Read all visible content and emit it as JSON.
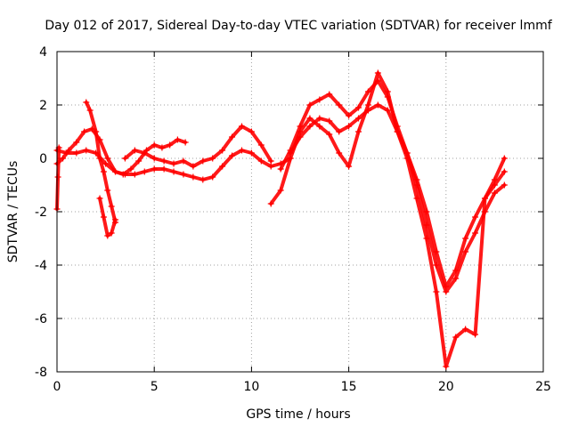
{
  "chart_data": {
    "type": "scatter",
    "title": "Day 012 of 2017, Sidereal Day-to-day VTEC variation (SDTVAR) for receiver lmmf",
    "xlabel": "GPS time / hours",
    "ylabel": "SDTVAR / TECUs",
    "xlim": [
      0,
      25
    ],
    "ylim": [
      -8,
      4
    ],
    "xticks": [
      0,
      5,
      10,
      15,
      20,
      25
    ],
    "yticks": [
      -8,
      -6,
      -4,
      -2,
      0,
      2,
      4
    ],
    "grid": true,
    "marker": "+",
    "color": "#ff0000",
    "series": [
      {
        "x": [
          0.0,
          0.3,
          0.6,
          1.0,
          1.4,
          1.8,
          2.2,
          2.6,
          3.0,
          3.4,
          3.8,
          4.2,
          4.6,
          5.0,
          5.4,
          5.8,
          6.2,
          6.6
        ],
        "y": [
          -0.2,
          0.0,
          0.3,
          0.6,
          1.0,
          1.1,
          0.7,
          0.0,
          -0.5,
          -0.6,
          -0.4,
          -0.1,
          0.3,
          0.5,
          0.4,
          0.5,
          0.7,
          0.6
        ]
      },
      {
        "x": [
          1.5,
          1.7,
          2.0,
          2.2,
          2.4,
          2.6,
          2.8,
          3.0
        ],
        "y": [
          2.1,
          1.8,
          1.0,
          0.0,
          -0.5,
          -1.2,
          -1.8,
          -2.4
        ]
      },
      {
        "x": [
          2.2,
          2.4,
          2.6,
          2.8,
          3.0
        ],
        "y": [
          -1.5,
          -2.2,
          -2.9,
          -2.8,
          -2.3
        ]
      },
      {
        "x": [
          0.0,
          0.5,
          1.0,
          1.5,
          2.0,
          2.5,
          3.0,
          3.5,
          4.0,
          4.5,
          5.0,
          5.5,
          6.0,
          6.5,
          7.0,
          7.5,
          8.0,
          8.5,
          9.0,
          9.5,
          10.0,
          10.5,
          11.0,
          11.5,
          12.0
        ],
        "y": [
          0.3,
          0.2,
          0.2,
          0.3,
          0.2,
          -0.2,
          -0.5,
          -0.6,
          -0.6,
          -0.5,
          -0.4,
          -0.4,
          -0.5,
          -0.6,
          -0.7,
          -0.8,
          -0.7,
          -0.3,
          0.1,
          0.3,
          0.2,
          -0.1,
          -0.3,
          -0.2,
          0.0
        ]
      },
      {
        "x": [
          3.5,
          4.0,
          4.5,
          5.0,
          5.5,
          6.0,
          6.5,
          7.0,
          7.5,
          8.0,
          8.5,
          9.0,
          9.5,
          10.0,
          10.5,
          11.0
        ],
        "y": [
          0.0,
          0.3,
          0.2,
          0.0,
          -0.1,
          -0.2,
          -0.1,
          -0.3,
          -0.1,
          0.0,
          0.3,
          0.8,
          1.2,
          1.0,
          0.5,
          -0.1
        ]
      },
      {
        "x": [
          11.0,
          11.5,
          12.0,
          12.5,
          13.0,
          13.5,
          14.0,
          14.5,
          15.0,
          15.5,
          16.0,
          16.5,
          17.0,
          17.5,
          18.0,
          18.5,
          19.0,
          19.5,
          20.0,
          20.5,
          21.0,
          21.5,
          22.0,
          22.5,
          23.0
        ],
        "y": [
          -1.7,
          -1.2,
          0.0,
          1.0,
          1.5,
          1.2,
          0.9,
          0.2,
          -0.3,
          1.0,
          2.0,
          3.2,
          2.5,
          1.0,
          0.0,
          -1.5,
          -3.0,
          -5.0,
          -7.8,
          -6.7,
          -6.4,
          -6.6,
          -1.5,
          -1.0,
          -0.5
        ]
      },
      {
        "x": [
          11.5,
          12.0,
          12.5,
          13.0,
          13.5,
          14.0,
          14.5,
          15.0,
          15.5,
          16.0,
          16.5,
          17.0,
          17.5,
          18.0,
          18.5,
          19.0,
          19.5,
          20.0,
          20.5,
          21.0,
          21.5,
          22.0,
          22.5,
          23.0
        ],
        "y": [
          -0.4,
          0.3,
          1.2,
          2.0,
          2.2,
          2.4,
          2.0,
          1.6,
          1.9,
          2.5,
          2.9,
          2.3,
          1.2,
          0.2,
          -1.0,
          -2.5,
          -4.0,
          -5.0,
          -4.5,
          -3.5,
          -2.8,
          -2.0,
          -1.3,
          -1.0
        ]
      },
      {
        "x": [
          12.0,
          12.5,
          13.0,
          13.5,
          14.0,
          14.5,
          15.0,
          15.5,
          16.0,
          16.5,
          17.0,
          17.5,
          18.0,
          18.5,
          19.0,
          19.5,
          20.0,
          20.5,
          21.0,
          21.5,
          22.0,
          22.5,
          23.0
        ],
        "y": [
          0.2,
          0.8,
          1.2,
          1.5,
          1.4,
          1.0,
          1.2,
          1.5,
          1.8,
          2.0,
          1.8,
          1.0,
          0.2,
          -0.8,
          -2.0,
          -3.5,
          -4.8,
          -4.2,
          -3.0,
          -2.2,
          -1.5,
          -0.8,
          0.0
        ]
      },
      {
        "x": [
          0.0,
          0.05,
          0.1
        ],
        "y": [
          -1.9,
          -0.7,
          0.4
        ]
      }
    ]
  }
}
